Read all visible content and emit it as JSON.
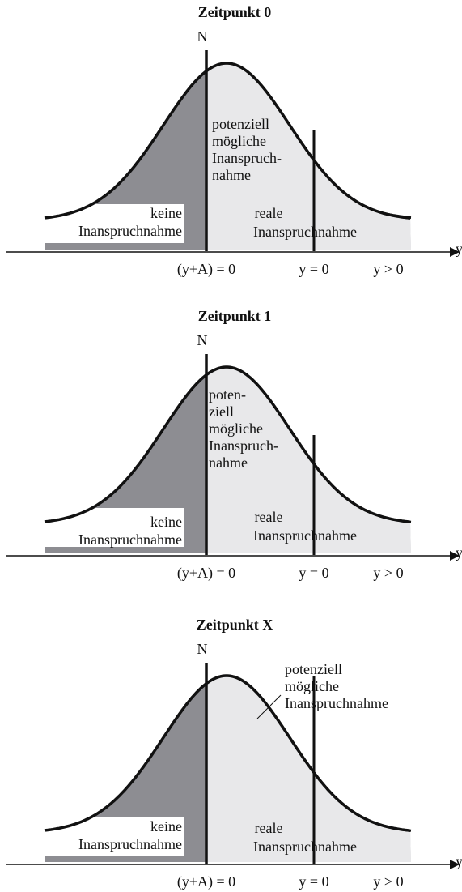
{
  "panels": [
    {
      "title": "Zeitpunkt 0",
      "vertical_label": "N",
      "potential": [
        "potenziell",
        "mögliche",
        "Inanspruch-",
        "nahme"
      ],
      "none": [
        "keine",
        "Inanspruchnahme"
      ],
      "real": [
        "reale",
        "Inanspruchnahme"
      ],
      "axis_label": "y",
      "ticks": [
        "(y+A) = 0",
        "y = 0",
        "y > 0"
      ]
    },
    {
      "title": "Zeitpunkt 1",
      "vertical_label": "N",
      "potential": [
        "poten-",
        "ziell",
        "mögliche",
        "Inanspruch-",
        "nahme"
      ],
      "none": [
        "keine",
        "Inanspruchnahme"
      ],
      "real": [
        "reale",
        "Inanspruchnahme"
      ],
      "axis_label": "y",
      "ticks": [
        "(y+A) = 0",
        "y = 0",
        "y > 0"
      ]
    },
    {
      "title": "Zeitpunkt X",
      "vertical_label": "N",
      "potential": [
        "potenziell",
        "mögliche",
        "Inanspruchnahme"
      ],
      "none": [
        "keine",
        "Inanspruchnahme"
      ],
      "real": [
        "reale",
        "Inanspruchnahme"
      ],
      "axis_label": "y",
      "ticks": [
        "(y+A) = 0",
        "y = 0",
        "y > 0"
      ]
    }
  ]
}
